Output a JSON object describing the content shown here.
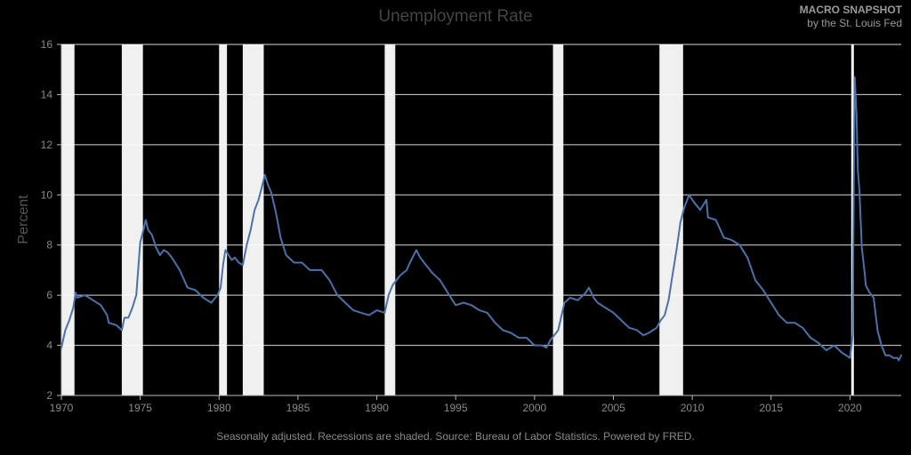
{
  "header": {
    "title": "Unemployment Rate",
    "brand_title": "MACRO SNAPSHOT",
    "brand_subtitle": "by the St. Louis Fed"
  },
  "footer": {
    "note": "Seasonally adjusted. Recessions are shaded. Source: Bureau of Labor Statistics. Powered by FRED."
  },
  "colors": {
    "line": "#4a72a8",
    "recession": "#f0f0f0",
    "grid": "#ffffff",
    "axis": "#bbbbbb"
  },
  "chart_data": {
    "type": "line",
    "title": "Unemployment Rate",
    "xlabel": "",
    "ylabel": "Percent",
    "xlim": [
      1970.0,
      2023.25
    ],
    "ylim": [
      2,
      16
    ],
    "x_ticks": [
      1970,
      1975,
      1980,
      1985,
      1990,
      1995,
      2000,
      2005,
      2010,
      2015,
      2020
    ],
    "x_tick_labels": [
      "1970",
      "1975",
      "1980",
      "1985",
      "1990",
      "1995",
      "2000",
      "2005",
      "2010",
      "2015",
      "2020"
    ],
    "y_ticks": [
      2,
      4,
      6,
      8,
      10,
      12,
      14,
      16
    ],
    "y_tick_labels": [
      "2",
      "4",
      "6",
      "8",
      "10",
      "12",
      "14",
      "16"
    ],
    "grid": true,
    "recessions": [
      [
        1970.0,
        1970.83
      ],
      [
        1973.83,
        1975.17
      ],
      [
        1980.0,
        1980.5
      ],
      [
        1981.5,
        1982.83
      ],
      [
        1990.5,
        1991.17
      ],
      [
        2001.17,
        2001.83
      ],
      [
        2007.92,
        2009.42
      ],
      [
        2020.08,
        2020.25
      ]
    ],
    "series": [
      {
        "points": [
          [
            1970.0,
            3.9
          ],
          [
            1970.25,
            4.6
          ],
          [
            1970.5,
            5.0
          ],
          [
            1970.75,
            5.5
          ],
          [
            1970.9,
            6.1
          ],
          [
            1971.0,
            5.9
          ],
          [
            1971.5,
            6.0
          ],
          [
            1972.0,
            5.8
          ],
          [
            1972.5,
            5.6
          ],
          [
            1972.9,
            5.2
          ],
          [
            1973.0,
            4.9
          ],
          [
            1973.5,
            4.8
          ],
          [
            1973.83,
            4.6
          ],
          [
            1974.0,
            5.1
          ],
          [
            1974.25,
            5.1
          ],
          [
            1974.5,
            5.5
          ],
          [
            1974.75,
            6.0
          ],
          [
            1975.0,
            8.1
          ],
          [
            1975.2,
            8.6
          ],
          [
            1975.35,
            9.0
          ],
          [
            1975.5,
            8.6
          ],
          [
            1975.75,
            8.4
          ],
          [
            1976.0,
            7.9
          ],
          [
            1976.25,
            7.6
          ],
          [
            1976.5,
            7.8
          ],
          [
            1976.75,
            7.7
          ],
          [
            1977.0,
            7.5
          ],
          [
            1977.5,
            7.0
          ],
          [
            1978.0,
            6.3
          ],
          [
            1978.5,
            6.2
          ],
          [
            1979.0,
            5.9
          ],
          [
            1979.5,
            5.7
          ],
          [
            1979.9,
            6.0
          ],
          [
            1980.1,
            6.3
          ],
          [
            1980.25,
            7.2
          ],
          [
            1980.4,
            7.8
          ],
          [
            1980.6,
            7.6
          ],
          [
            1980.8,
            7.4
          ],
          [
            1981.0,
            7.5
          ],
          [
            1981.25,
            7.3
          ],
          [
            1981.5,
            7.2
          ],
          [
            1981.75,
            8.0
          ],
          [
            1982.0,
            8.6
          ],
          [
            1982.25,
            9.4
          ],
          [
            1982.5,
            9.8
          ],
          [
            1982.75,
            10.4
          ],
          [
            1982.9,
            10.8
          ],
          [
            1983.1,
            10.4
          ],
          [
            1983.3,
            10.1
          ],
          [
            1983.6,
            9.3
          ],
          [
            1983.9,
            8.3
          ],
          [
            1984.25,
            7.6
          ],
          [
            1984.75,
            7.3
          ],
          [
            1985.25,
            7.3
          ],
          [
            1985.75,
            7.0
          ],
          [
            1986.0,
            7.0
          ],
          [
            1986.5,
            7.0
          ],
          [
            1987.0,
            6.6
          ],
          [
            1987.5,
            6.0
          ],
          [
            1988.0,
            5.7
          ],
          [
            1988.5,
            5.4
          ],
          [
            1989.0,
            5.3
          ],
          [
            1989.5,
            5.2
          ],
          [
            1990.0,
            5.4
          ],
          [
            1990.5,
            5.3
          ],
          [
            1990.75,
            6.0
          ],
          [
            1991.0,
            6.4
          ],
          [
            1991.5,
            6.8
          ],
          [
            1991.9,
            7.0
          ],
          [
            1992.1,
            7.3
          ],
          [
            1992.5,
            7.8
          ],
          [
            1992.75,
            7.5
          ],
          [
            1993.0,
            7.3
          ],
          [
            1993.5,
            6.9
          ],
          [
            1994.0,
            6.6
          ],
          [
            1994.5,
            6.1
          ],
          [
            1995.0,
            5.6
          ],
          [
            1995.5,
            5.7
          ],
          [
            1996.0,
            5.6
          ],
          [
            1996.5,
            5.4
          ],
          [
            1997.0,
            5.3
          ],
          [
            1997.5,
            4.9
          ],
          [
            1998.0,
            4.6
          ],
          [
            1998.5,
            4.5
          ],
          [
            1999.0,
            4.3
          ],
          [
            1999.5,
            4.3
          ],
          [
            2000.0,
            4.0
          ],
          [
            2000.5,
            4.0
          ],
          [
            2000.75,
            3.9
          ],
          [
            2001.0,
            4.2
          ],
          [
            2001.5,
            4.6
          ],
          [
            2001.9,
            5.7
          ],
          [
            2002.25,
            5.9
          ],
          [
            2002.75,
            5.8
          ],
          [
            2003.25,
            6.1
          ],
          [
            2003.45,
            6.3
          ],
          [
            2003.75,
            5.9
          ],
          [
            2004.0,
            5.7
          ],
          [
            2004.5,
            5.5
          ],
          [
            2005.0,
            5.3
          ],
          [
            2005.5,
            5.0
          ],
          [
            2006.0,
            4.7
          ],
          [
            2006.5,
            4.6
          ],
          [
            2006.9,
            4.4
          ],
          [
            2007.25,
            4.5
          ],
          [
            2007.75,
            4.7
          ],
          [
            2008.0,
            5.0
          ],
          [
            2008.25,
            5.2
          ],
          [
            2008.5,
            5.8
          ],
          [
            2008.75,
            6.8
          ],
          [
            2009.0,
            7.8
          ],
          [
            2009.25,
            8.9
          ],
          [
            2009.5,
            9.5
          ],
          [
            2009.8,
            10.0
          ],
          [
            2010.0,
            9.8
          ],
          [
            2010.5,
            9.4
          ],
          [
            2010.9,
            9.8
          ],
          [
            2011.0,
            9.1
          ],
          [
            2011.5,
            9.0
          ],
          [
            2012.0,
            8.3
          ],
          [
            2012.5,
            8.2
          ],
          [
            2013.0,
            8.0
          ],
          [
            2013.5,
            7.5
          ],
          [
            2014.0,
            6.6
          ],
          [
            2014.5,
            6.2
          ],
          [
            2015.0,
            5.7
          ],
          [
            2015.5,
            5.2
          ],
          [
            2016.0,
            4.9
          ],
          [
            2016.5,
            4.9
          ],
          [
            2017.0,
            4.7
          ],
          [
            2017.5,
            4.3
          ],
          [
            2018.0,
            4.1
          ],
          [
            2018.5,
            3.8
          ],
          [
            2019.0,
            4.0
          ],
          [
            2019.5,
            3.7
          ],
          [
            2020.0,
            3.5
          ],
          [
            2020.17,
            4.4
          ],
          [
            2020.3,
            14.7
          ],
          [
            2020.42,
            13.2
          ],
          [
            2020.5,
            11.0
          ],
          [
            2020.6,
            10.2
          ],
          [
            2020.75,
            7.9
          ],
          [
            2020.95,
            6.8
          ],
          [
            2021.0,
            6.4
          ],
          [
            2021.25,
            6.1
          ],
          [
            2021.5,
            5.9
          ],
          [
            2021.75,
            4.6
          ],
          [
            2022.0,
            4.0
          ],
          [
            2022.25,
            3.6
          ],
          [
            2022.5,
            3.6
          ],
          [
            2022.75,
            3.5
          ],
          [
            2023.0,
            3.5
          ],
          [
            2023.1,
            3.4
          ],
          [
            2023.25,
            3.6
          ]
        ]
      }
    ]
  }
}
